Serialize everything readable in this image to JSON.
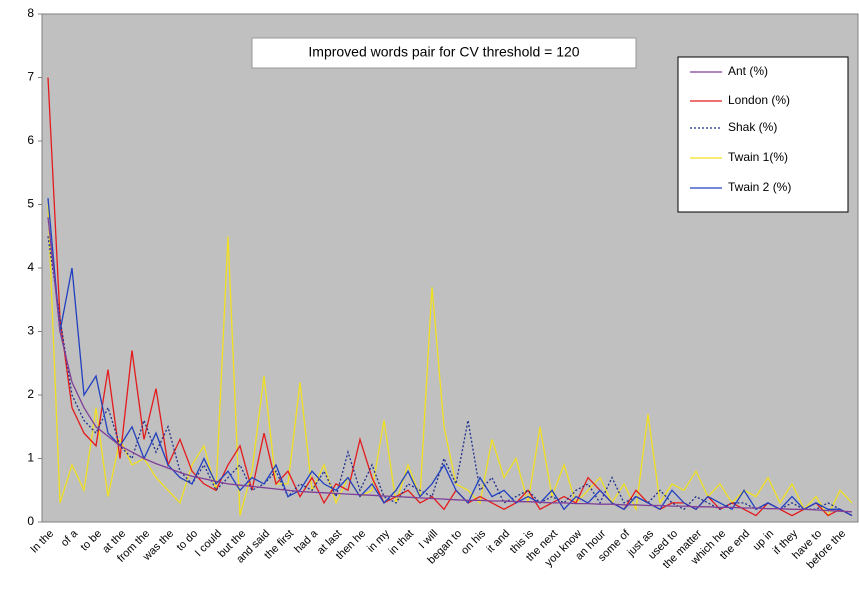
{
  "chart_data": {
    "type": "line",
    "title": "Improved words pair for CV threshold  = 120",
    "categories": [
      "In the",
      null,
      "of a",
      null,
      "to be",
      null,
      "at the",
      null,
      "from the",
      null,
      "was the",
      null,
      "to do",
      null,
      "I could",
      null,
      "but the",
      null,
      "and said",
      null,
      "the first",
      null,
      "had a",
      null,
      "at last",
      null,
      "then he",
      null,
      "in my",
      null,
      "in that",
      null,
      "I will",
      null,
      "began to",
      null,
      "on his",
      null,
      "it and",
      null,
      "this is",
      null,
      "the next",
      null,
      "you know",
      null,
      "an hour",
      null,
      "some of",
      null,
      "just as",
      null,
      "used to",
      null,
      "the matter",
      null,
      "which he",
      null,
      "the end",
      null,
      "up in",
      null,
      "if they",
      null,
      "have to",
      null,
      "before the",
      null
    ],
    "series": [
      {
        "name": "Ant (%)",
        "color": "#7f3f98",
        "values": [
          4.8,
          3.0,
          2.2,
          1.8,
          1.5,
          1.35,
          1.2,
          1.1,
          1.0,
          0.92,
          0.85,
          0.78,
          0.72,
          0.68,
          0.64,
          0.6,
          0.58,
          0.56,
          0.54,
          0.52,
          0.5,
          0.48,
          0.47,
          0.46,
          0.45,
          0.44,
          0.43,
          0.42,
          0.41,
          0.4,
          0.39,
          0.38,
          0.37,
          0.36,
          0.35,
          0.34,
          0.34,
          0.33,
          0.33,
          0.32,
          0.32,
          0.31,
          0.3,
          0.3,
          0.29,
          0.29,
          0.28,
          0.28,
          0.27,
          0.27,
          0.26,
          0.26,
          0.25,
          0.25,
          0.24,
          0.24,
          0.23,
          0.23,
          0.22,
          0.22,
          0.21,
          0.21,
          0.2,
          0.2,
          0.19,
          0.18,
          0.17,
          0.16
        ]
      },
      {
        "name": "London (%)",
        "color": "#e41a1c",
        "values": [
          7.0,
          3.2,
          1.8,
          1.4,
          1.2,
          2.4,
          1.0,
          2.7,
          1.3,
          2.1,
          0.9,
          1.3,
          0.8,
          0.6,
          0.5,
          0.9,
          1.2,
          0.5,
          1.4,
          0.6,
          0.8,
          0.4,
          0.7,
          0.3,
          0.6,
          0.5,
          1.3,
          0.7,
          0.3,
          0.4,
          0.5,
          0.3,
          0.4,
          0.2,
          0.5,
          0.3,
          0.4,
          0.3,
          0.2,
          0.3,
          0.5,
          0.2,
          0.3,
          0.4,
          0.3,
          0.7,
          0.5,
          0.3,
          0.2,
          0.5,
          0.3,
          0.2,
          0.3,
          0.3,
          0.2,
          0.4,
          0.2,
          0.3,
          0.2,
          0.1,
          0.3,
          0.2,
          0.1,
          0.2,
          0.3,
          0.1,
          0.2,
          0.1
        ]
      },
      {
        "name": "Shak (%)",
        "color": "#1f2f8f",
        "dash": true,
        "values": [
          4.5,
          3.2,
          2.0,
          1.6,
          1.4,
          1.8,
          1.2,
          1.0,
          1.6,
          1.1,
          1.5,
          0.8,
          0.6,
          0.9,
          0.5,
          0.7,
          0.9,
          0.5,
          0.6,
          0.8,
          0.4,
          0.6,
          0.5,
          0.8,
          0.4,
          1.1,
          0.5,
          0.9,
          0.4,
          0.3,
          0.6,
          0.5,
          0.4,
          1.0,
          0.6,
          1.6,
          0.5,
          0.7,
          0.3,
          0.4,
          0.5,
          0.3,
          0.4,
          0.3,
          0.5,
          0.6,
          0.3,
          0.7,
          0.3,
          0.4,
          0.3,
          0.5,
          0.3,
          0.2,
          0.4,
          0.3,
          0.2,
          0.3,
          0.3,
          0.2,
          0.3,
          0.2,
          0.3,
          0.2,
          0.2,
          0.3,
          0.2,
          0.1
        ]
      },
      {
        "name": "Twain 1(%)",
        "color": "#f0e020",
        "values": [
          5.0,
          0.3,
          0.9,
          0.5,
          1.8,
          0.4,
          1.3,
          0.9,
          1.0,
          0.7,
          0.5,
          0.3,
          0.9,
          1.2,
          0.5,
          4.5,
          0.1,
          0.8,
          2.3,
          0.6,
          0.6,
          2.2,
          0.5,
          0.9,
          0.3,
          0.7,
          0.4,
          0.5,
          1.6,
          0.3,
          0.9,
          0.4,
          3.7,
          1.5,
          0.6,
          0.5,
          0.3,
          1.3,
          0.7,
          1.0,
          0.3,
          1.5,
          0.4,
          0.9,
          0.3,
          0.5,
          0.7,
          0.3,
          0.6,
          0.2,
          1.7,
          0.3,
          0.6,
          0.5,
          0.8,
          0.4,
          0.6,
          0.3,
          0.5,
          0.4,
          0.7,
          0.3,
          0.6,
          0.2,
          0.4,
          0.1,
          0.5,
          0.3
        ]
      },
      {
        "name": "Twain 2 (%)",
        "color": "#2040c0",
        "values": [
          5.1,
          3.0,
          4.0,
          2.0,
          2.3,
          1.4,
          1.2,
          1.5,
          1.0,
          1.4,
          0.9,
          0.7,
          0.6,
          1.0,
          0.6,
          0.8,
          0.5,
          0.7,
          0.6,
          0.9,
          0.4,
          0.5,
          0.8,
          0.6,
          0.5,
          0.7,
          0.4,
          0.6,
          0.3,
          0.5,
          0.8,
          0.4,
          0.6,
          0.9,
          0.5,
          0.3,
          0.7,
          0.4,
          0.5,
          0.3,
          0.4,
          0.3,
          0.5,
          0.2,
          0.4,
          0.3,
          0.5,
          0.3,
          0.2,
          0.4,
          0.3,
          0.2,
          0.5,
          0.3,
          0.2,
          0.4,
          0.3,
          0.2,
          0.5,
          0.2,
          0.3,
          0.2,
          0.4,
          0.2,
          0.3,
          0.2,
          0.2,
          0.1
        ]
      }
    ],
    "ylim": [
      0,
      8
    ],
    "yticks": [
      0,
      1,
      2,
      3,
      4,
      5,
      6,
      7,
      8
    ],
    "grid": false,
    "legend": "upper right"
  }
}
